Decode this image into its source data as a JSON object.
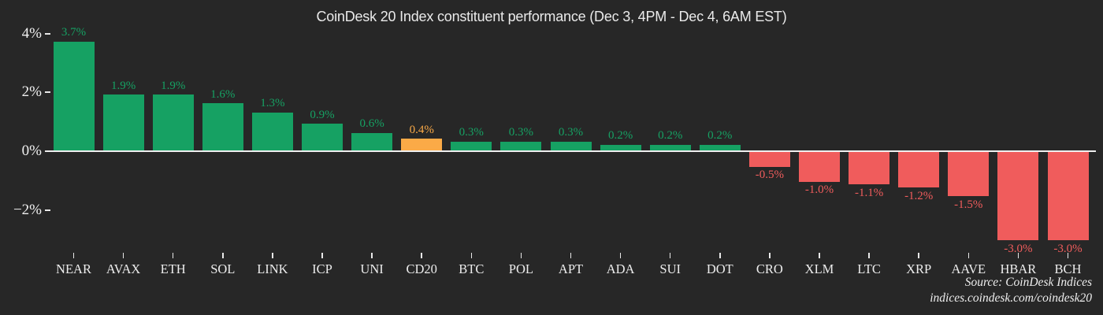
{
  "title": "CoinDesk 20 Index constituent performance (Dec 3, 4PM - Dec 4, 6AM EST)",
  "source": {
    "line1": "Source: CoinDesk Indices",
    "line2": "indices.coindesk.com/coindesk20"
  },
  "colors": {
    "background": "#272727",
    "positive": "#16a163",
    "negative": "#f05c5c",
    "highlight": "#fbaa47",
    "axis": "#efefef",
    "text": "#eaeaea"
  },
  "chart_data": {
    "type": "bar",
    "title": "CoinDesk 20 Index constituent performance (Dec 3, 4PM - Dec 4, 6AM EST)",
    "xlabel": "",
    "ylabel": "",
    "ylim": [
      -3.6,
      4.3
    ],
    "grid": false,
    "legend": false,
    "yticks": [
      {
        "label": "4%",
        "value": 4
      },
      {
        "label": "2%",
        "value": 2
      },
      {
        "label": "0%",
        "value": 0
      },
      {
        "label": "−2%",
        "value": -2
      }
    ],
    "bars": [
      {
        "category": "NEAR",
        "value": 3.7,
        "display": "3.7%",
        "color": "positive"
      },
      {
        "category": "AVAX",
        "value": 1.9,
        "display": "1.9%",
        "color": "positive"
      },
      {
        "category": "ETH",
        "value": 1.9,
        "display": "1.9%",
        "color": "positive"
      },
      {
        "category": "SOL",
        "value": 1.6,
        "display": "1.6%",
        "color": "positive"
      },
      {
        "category": "LINK",
        "value": 1.3,
        "display": "1.3%",
        "color": "positive"
      },
      {
        "category": "ICP",
        "value": 0.9,
        "display": "0.9%",
        "color": "positive"
      },
      {
        "category": "UNI",
        "value": 0.6,
        "display": "0.6%",
        "color": "positive"
      },
      {
        "category": "CD20",
        "value": 0.4,
        "display": "0.4%",
        "color": "highlight"
      },
      {
        "category": "BTC",
        "value": 0.3,
        "display": "0.3%",
        "color": "positive"
      },
      {
        "category": "POL",
        "value": 0.3,
        "display": "0.3%",
        "color": "positive"
      },
      {
        "category": "APT",
        "value": 0.3,
        "display": "0.3%",
        "color": "positive"
      },
      {
        "category": "ADA",
        "value": 0.2,
        "display": "0.2%",
        "color": "positive"
      },
      {
        "category": "SUI",
        "value": 0.2,
        "display": "0.2%",
        "color": "positive"
      },
      {
        "category": "DOT",
        "value": 0.2,
        "display": "0.2%",
        "color": "positive"
      },
      {
        "category": "CRO",
        "value": -0.5,
        "display": "-0.5%",
        "color": "negative"
      },
      {
        "category": "XLM",
        "value": -1.0,
        "display": "-1.0%",
        "color": "negative"
      },
      {
        "category": "LTC",
        "value": -1.1,
        "display": "-1.1%",
        "color": "negative"
      },
      {
        "category": "XRP",
        "value": -1.2,
        "display": "-1.2%",
        "color": "negative"
      },
      {
        "category": "AAVE",
        "value": -1.5,
        "display": "-1.5%",
        "color": "negative"
      },
      {
        "category": "HBAR",
        "value": -3.0,
        "display": "-3.0%",
        "color": "negative"
      },
      {
        "category": "BCH",
        "value": -3.0,
        "display": "-3.0%",
        "color": "negative"
      }
    ]
  }
}
